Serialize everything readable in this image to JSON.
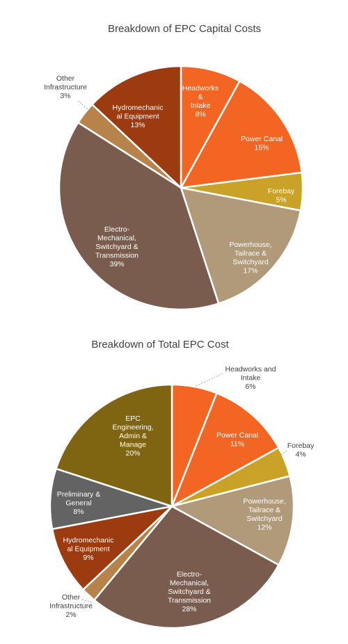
{
  "chart_data": [
    {
      "type": "pie",
      "title": "Breakdown of EPC Capital Costs",
      "slices": [
        {
          "label": [
            "Headworks",
            "&",
            "Intake"
          ],
          "pct_text": "8%",
          "value": 8,
          "color": "#f26522",
          "label_inside": true
        },
        {
          "label": [
            "Power Canal"
          ],
          "pct_text": "15%",
          "value": 15,
          "color": "#f26522",
          "label_inside": true
        },
        {
          "label": [
            "Forebay"
          ],
          "pct_text": "5%",
          "value": 5,
          "color": "#c9a227",
          "label_inside": true
        },
        {
          "label": [
            "Powerhouse,",
            "Tailrace &",
            "Switchyard"
          ],
          "pct_text": "17%",
          "value": 17,
          "color": "#b09a7a",
          "label_inside": true
        },
        {
          "label": [
            "Electro-",
            "Mechanical,",
            "Switchyard &",
            "Transmission"
          ],
          "pct_text": "39%",
          "value": 39,
          "color": "#7a5c4e",
          "label_inside": true
        },
        {
          "label": [
            "Other",
            "Infrastructure"
          ],
          "pct_text": "3%",
          "value": 3,
          "color": "#b8834a",
          "label_inside": false
        },
        {
          "label": [
            "Hydromechanic",
            "al Equipment"
          ],
          "pct_text": "13%",
          "value": 13,
          "color": "#9c3a10",
          "label_inside": true
        }
      ]
    },
    {
      "type": "pie",
      "title": "Breakdown of Total EPC Cost",
      "slices": [
        {
          "label": [
            "Headworks and",
            "Intake"
          ],
          "pct_text": "6%",
          "value": 6,
          "color": "#f26522",
          "label_inside": false
        },
        {
          "label": [
            "Power Canal"
          ],
          "pct_text": "11%",
          "value": 11,
          "color": "#f26522",
          "label_inside": true
        },
        {
          "label": [
            "Forebay"
          ],
          "pct_text": "4%",
          "value": 4,
          "color": "#c9a227",
          "label_inside": false
        },
        {
          "label": [
            "Powerhouse,",
            "Tailrace &",
            "Switchyard"
          ],
          "pct_text": "12%",
          "value": 12,
          "color": "#b09a7a",
          "label_inside": true
        },
        {
          "label": [
            "Electro-",
            "Mechanical,",
            "Switchyard &",
            "Transmission"
          ],
          "pct_text": "28%",
          "value": 28,
          "color": "#7a5c4e",
          "label_inside": true
        },
        {
          "label": [
            "Other",
            "Infrastructure"
          ],
          "pct_text": "2%",
          "value": 2,
          "color": "#b8834a",
          "label_inside": false
        },
        {
          "label": [
            "Hydromechanic",
            "al Equipment"
          ],
          "pct_text": "9%",
          "value": 9,
          "color": "#9c3a10",
          "label_inside": true
        },
        {
          "label": [
            "Preliminary &",
            "General"
          ],
          "pct_text": "8%",
          "value": 8,
          "color": "#636363",
          "label_inside": true
        },
        {
          "label": [
            "EPC",
            "Engineering,",
            "Admin &",
            "Manage"
          ],
          "pct_text": "20%",
          "value": 20,
          "color": "#7f6512",
          "label_inside": true
        }
      ]
    }
  ]
}
